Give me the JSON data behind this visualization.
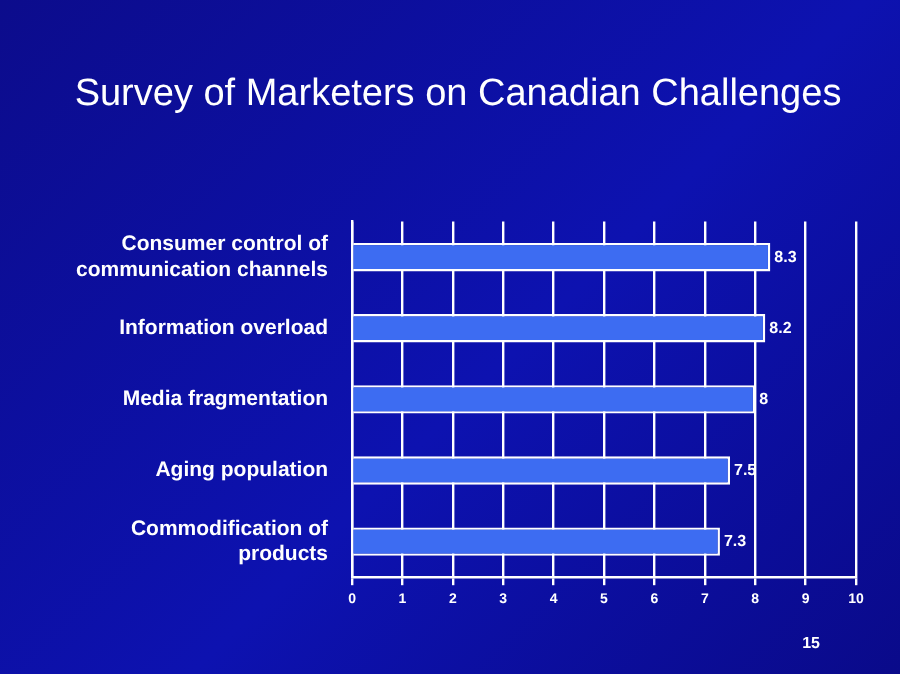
{
  "chart_data": {
    "type": "bar",
    "orientation": "horizontal",
    "title": "Survey of Marketers on Canadian Challenges",
    "categories": [
      "Consumer control of communication channels",
      "Information overload",
      "Media fragmentation",
      "Aging population",
      "Commodification of products"
    ],
    "values": [
      8.3,
      8.2,
      8,
      7.5,
      7.3
    ],
    "color": "#3d6cf2",
    "xlim": [
      0,
      10
    ],
    "xticks": [
      0,
      1,
      2,
      3,
      4,
      5,
      6,
      7,
      8,
      9,
      10
    ],
    "grid": "x",
    "data_labels": true,
    "legend": false,
    "annotations": [
      "15"
    ]
  }
}
